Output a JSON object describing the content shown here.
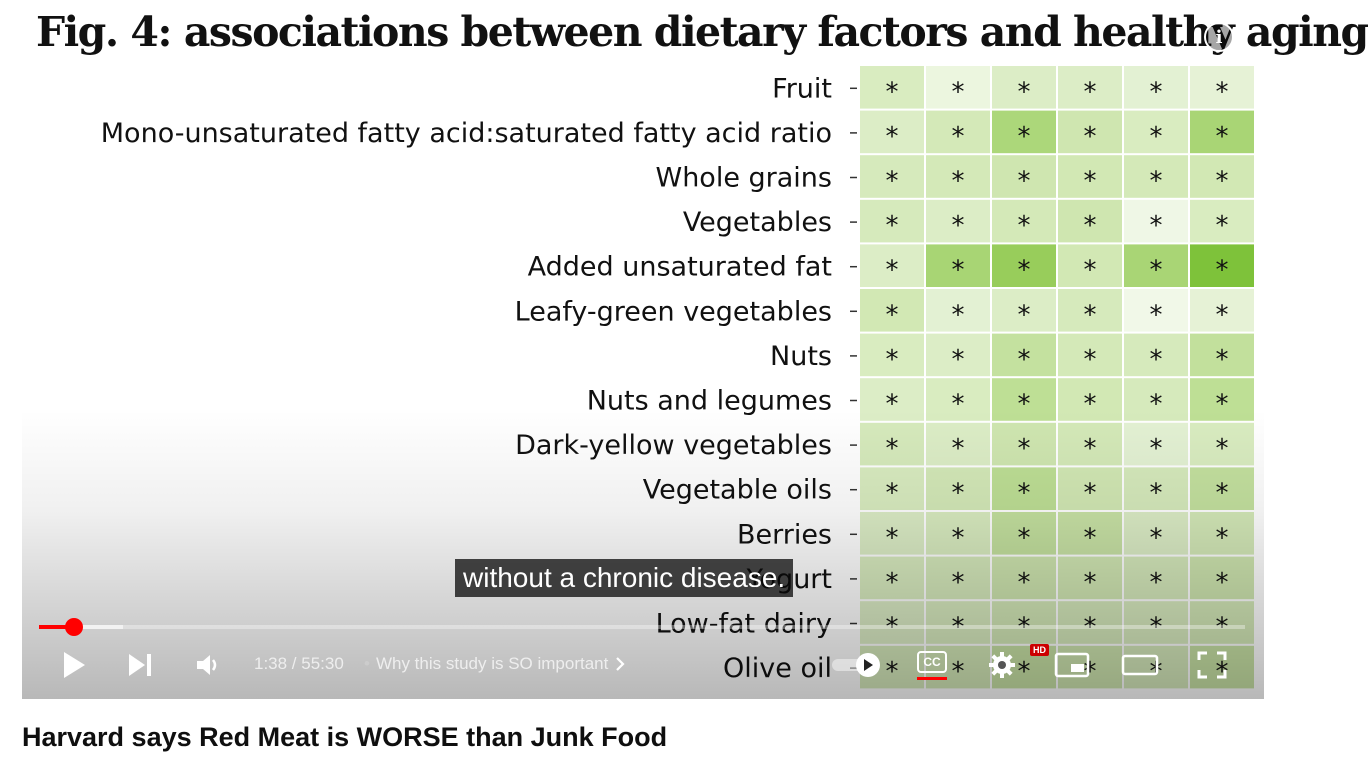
{
  "figure": {
    "title": "Fig. 4: associations between dietary factors and healthy aging",
    "rows": [
      {
        "label": "Fruit",
        "cells": [
          "#d9ecc0",
          "#ecf6df",
          "#dcedc6",
          "#dcedc6",
          "#e3f1d3",
          "#e6f2d6"
        ]
      },
      {
        "label": "Mono-unsaturated fatty acid:saturated fatty acid ratio",
        "cells": [
          "#dcedc6",
          "#d4e9b8",
          "#acd77a",
          "#cfe6b0",
          "#d9ecc0",
          "#a9d575"
        ]
      },
      {
        "label": "Whole grains",
        "cells": [
          "#d6eabc",
          "#d4e9b8",
          "#cfe6b0",
          "#d2e8b4",
          "#d4e9b8",
          "#d2e8b4"
        ]
      },
      {
        "label": "Vegetables",
        "cells": [
          "#d6eabc",
          "#dcedc6",
          "#d4e9b8",
          "#cfe6b0",
          "#eff7e6",
          "#d9ecc0"
        ]
      },
      {
        "label": "Added unsaturated fat",
        "cells": [
          "#dcedc6",
          "#a8d574",
          "#98cd5b",
          "#d2e8b4",
          "#a9d575",
          "#7ec23a"
        ]
      },
      {
        "label": "Leafy-green vegetables",
        "cells": [
          "#d2e8b4",
          "#e3f1d3",
          "#dcedc6",
          "#d6eabc",
          "#f1f8e8",
          "#e6f2d6"
        ]
      },
      {
        "label": "Nuts",
        "cells": [
          "#d9ecc0",
          "#dcedc6",
          "#c4e19f",
          "#d4e9b8",
          "#d6eabc",
          "#c2e09c"
        ]
      },
      {
        "label": "Nuts and legumes",
        "cells": [
          "#dcedc6",
          "#d9ecc0",
          "#bedf95",
          "#d2e8b4",
          "#d6eabc",
          "#bedf95"
        ]
      },
      {
        "label": "Dark-yellow vegetables",
        "cells": [
          "#d6eabc",
          "#dcedc6",
          "#cfe6b0",
          "#d4e9b8",
          "#e3f1d3",
          "#d9ecc0"
        ]
      },
      {
        "label": "Vegetable oils",
        "cells": [
          "#d9ecc0",
          "#d4e9b8",
          "#bedf95",
          "#d2e8b4",
          "#d6eabc",
          "#c4e19f"
        ]
      },
      {
        "label": "Berries",
        "cells": [
          "#dcedc6",
          "#d9ecc0",
          "#c4e19f",
          "#c9e3a6",
          "#dcedc6",
          "#d4e9b8"
        ]
      },
      {
        "label": "Yogurt",
        "cells": [
          "#d9ecc0",
          "#d6eabc",
          "#cfe6b0",
          "#d2e8b4",
          "#d6eabc",
          "#cfe6b0"
        ]
      },
      {
        "label": "Low-fat dairy",
        "cells": [
          "#dcedc6",
          "#d9ecc0",
          "#d4e9b8",
          "#d6eabc",
          "#d9ecc0",
          "#d4e9b8"
        ]
      },
      {
        "label": "Olive oil",
        "cells": [
          "#d6eabc",
          "#d4e9b8",
          "#c9e3a6",
          "#cfe6b0",
          "#d6eabc",
          "#c9e3a6"
        ]
      }
    ],
    "star": "*"
  },
  "caption": "without a chronic disease.",
  "player": {
    "progress_fraction": 0.029,
    "buffer_fraction": 0.07,
    "time": "1:38 / 55:30",
    "chapter": "Why this study is SO important",
    "hd_badge": "HD",
    "cc_label": "CC",
    "icons": {
      "play": "play-icon",
      "next": "next-icon",
      "volume": "volume-icon",
      "autoplay": "autoplay-toggle-icon",
      "cc": "captions-icon",
      "settings": "gear-icon",
      "miniplayer": "miniplayer-icon",
      "theater": "theater-icon",
      "fullscreen": "fullscreen-icon",
      "info": "info-icon",
      "chevron": "chevron-right-icon"
    },
    "accent": "#ff0000"
  },
  "video_title": "Harvard says Red Meat is WORSE than Junk Food"
}
